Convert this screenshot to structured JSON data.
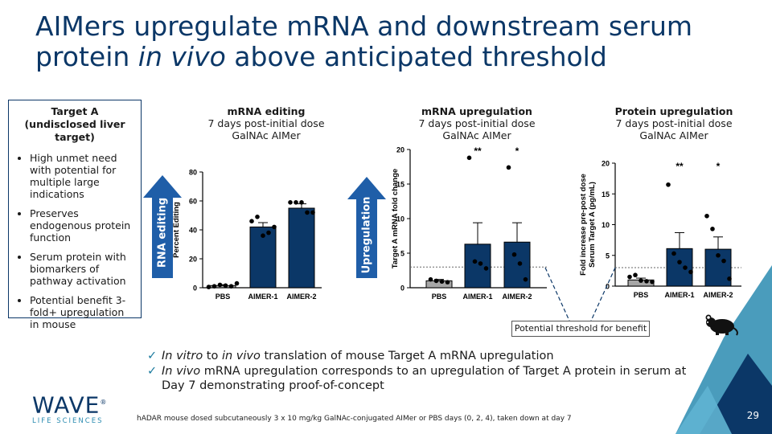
{
  "slide": {
    "title_part1": "AIMers upregulate mRNA and downstream serum",
    "title_part2_pre": "protein ",
    "title_part2_italic": "in vivo",
    "title_part2_post": " above anticipated threshold",
    "page_number": "29",
    "colors": {
      "navy": "#0b3767",
      "accent": "#1f5ea8",
      "teal": "#2a8bb0",
      "grey_bar": "#a6a6a6"
    }
  },
  "target_box": {
    "title": "Target A (undisclosed liver target)",
    "bullets": [
      "High unmet need with potential for multiple large indications",
      "Preserves endogenous protein function",
      "Serum protein with biomarkers of pathway activation",
      "Potential benefit 3-fold+ upregulation in mouse"
    ]
  },
  "arrows": {
    "left_label": "RNA editing",
    "right_label": "Upregulation"
  },
  "panels": [
    {
      "heading": "mRNA editing",
      "line2": "7 days post-initial dose",
      "line3": "GalNAc AIMer"
    },
    {
      "heading": "mRNA upregulation",
      "line2": "7 days post-initial dose",
      "line3": "GalNAc AIMer"
    },
    {
      "heading": "Protein upregulation",
      "line2": "7 days post-initial dose",
      "line3": "GalNAc AIMer"
    }
  ],
  "chart_data": [
    {
      "type": "bar",
      "ylabel": "Percent Editing",
      "ylim": [
        0,
        80
      ],
      "yticks": [
        "0",
        "20",
        "40",
        "60",
        "80"
      ],
      "categories": [
        "PBS",
        "AIMER-1",
        "AIMER-2"
      ],
      "values": [
        1.5,
        42,
        55
      ],
      "errors": [
        0.6,
        3,
        3
      ],
      "points": [
        [
          0.5,
          1,
          2,
          1.5,
          1,
          3
        ],
        [
          46,
          49,
          36,
          38,
          42
        ],
        [
          59,
          59,
          59,
          52,
          52
        ]
      ],
      "significance": [
        "",
        "",
        ""
      ]
    },
    {
      "type": "bar",
      "ylabel": "Target A mRNA fold change",
      "ylim": [
        0,
        20
      ],
      "yticks": [
        "0",
        "5",
        "10",
        "15",
        "20"
      ],
      "categories": [
        "PBS",
        "AIMER-1",
        "AIMER-2"
      ],
      "values": [
        1,
        6.3,
        6.6
      ],
      "errors": [
        0.2,
        3.1,
        2.8
      ],
      "points": [
        [
          1.2,
          1,
          0.9,
          0.8
        ],
        [
          18.8,
          3.8,
          3.5,
          2.8
        ],
        [
          17.4,
          4.8,
          3.5,
          1.2
        ]
      ],
      "significance": [
        "",
        "**",
        "*"
      ],
      "threshold": 3
    },
    {
      "type": "bar",
      "ylabel_line1": "Fold increase pre-post dose",
      "ylabel_line2": "Serum Target A (pg/mL)",
      "ylim": [
        0,
        20
      ],
      "yticks": [
        "0",
        "5",
        "10",
        "15",
        "20"
      ],
      "categories": [
        "PBS",
        "AIMER-1",
        "AIMER-2"
      ],
      "values": [
        1,
        6.1,
        6
      ],
      "errors": [
        0.3,
        2.6,
        2
      ],
      "points": [
        [
          1.5,
          1.8,
          0.9,
          0.8,
          0.7
        ],
        [
          16.5,
          5.3,
          3.9,
          3,
          2.3
        ],
        [
          11.4,
          9.3,
          5,
          4.1,
          1.2
        ]
      ],
      "significance": [
        "",
        "**",
        "*"
      ],
      "threshold": 3
    }
  ],
  "threshold_label": "Potential threshold for benefit",
  "checks": {
    "line1_pre_italic": "In vitro",
    "line1_mid": " to ",
    "line1_italic2": "in vivo",
    "line1_post": " translation of mouse Target A mRNA upregulation",
    "line2_italic": "In vivo",
    "line2_post": " mRNA upregulation corresponds to an upregulation of Target A protein in serum at Day 7 demonstrating proof-of-concept"
  },
  "footnote": "hADAR mouse dosed subcutaneously 3 x 10 mg/kg GalNAc-conjugated AIMer or PBS days (0, 2, 4), taken down at day 7",
  "logo": {
    "main": "WAVE",
    "sub": "LIFE SCIENCES",
    "mark": "®"
  }
}
